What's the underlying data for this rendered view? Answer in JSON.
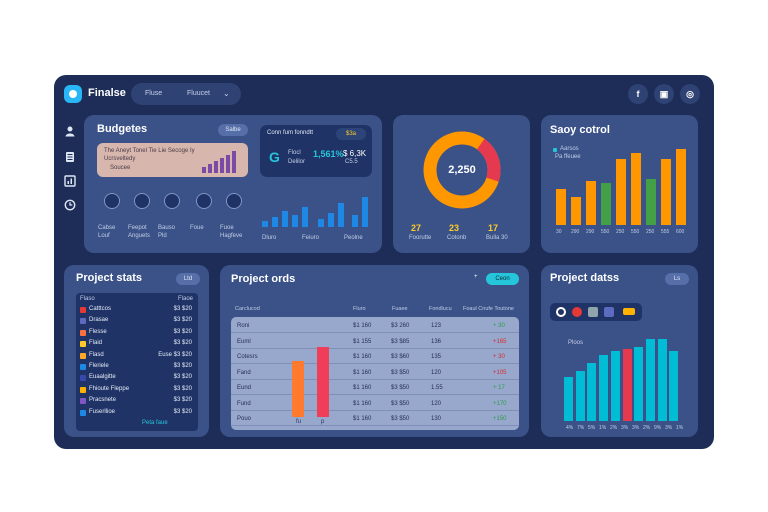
{
  "app": {
    "title": "Finalse"
  },
  "header": {
    "select_left": "Fluse",
    "select_right": "Fluucet",
    "chevron_glyph": "⌄",
    "social": [
      {
        "icon": "facebook-icon",
        "glyph": "f"
      },
      {
        "icon": "share-icon",
        "glyph": "▣"
      },
      {
        "icon": "globe-icon",
        "glyph": "◎"
      }
    ]
  },
  "sidebar": {
    "items": [
      {
        "icon": "user-icon"
      },
      {
        "icon": "document-icon"
      },
      {
        "icon": "chart-icon"
      },
      {
        "icon": "clock-icon"
      }
    ]
  },
  "budgets": {
    "title": "Budgetes",
    "pill": "Salbe",
    "banner": {
      "line1": "The Aneyt Tonel Tie Lie Secoge Iy",
      "line2": "Ucrsveltedy",
      "line3": "Soucee"
    },
    "people": [
      {
        "name": "Cabse",
        "sub": "Louf"
      },
      {
        "name": "Feepot",
        "sub": "Anguets"
      },
      {
        "name": "Bauso",
        "sub": "Pld"
      },
      {
        "name": "Foue",
        "sub": ""
      },
      {
        "name": "Fuoe",
        "sub": "Hagfeve"
      }
    ]
  },
  "cash": {
    "title": "Conn fum fonndtt",
    "tag": "$3a",
    "logo_glyph": "G",
    "label": "Flocl",
    "sub": "Delilor",
    "value": "1,561%",
    "value2": "$ 6,3K",
    "value2_sub": "C5.5",
    "x_labels": [
      "Dluro",
      "Feiuro",
      "Peolne"
    ]
  },
  "donut": {
    "center": "2,250",
    "legend": [
      {
        "value": "27",
        "label": "Foorutte"
      },
      {
        "value": "23",
        "label": "Cotonb"
      },
      {
        "value": "17",
        "label": "Bulla 30"
      }
    ]
  },
  "savings": {
    "title": "Saoy cotrol",
    "legend": [
      "Aarsos",
      "Pa ffeuee"
    ],
    "x_labels": [
      "30",
      "290",
      "290",
      "550",
      "250",
      "550",
      "250",
      "555",
      "600"
    ]
  },
  "project_left": {
    "title": "Project stats",
    "pill": "Ltd",
    "col1": "Flaso",
    "col2": "Flaoe",
    "rows": [
      {
        "name": "Catttcos",
        "value": "$3 $20"
      },
      {
        "name": "Drasae",
        "value": "$3 $20"
      },
      {
        "name": "Flesse",
        "value": "$3 $20"
      },
      {
        "name": "Flaid",
        "value": "$3 $20"
      },
      {
        "name": "Flasd",
        "value": "Euse $3 $20"
      },
      {
        "name": "Fleriele",
        "value": "$3 $20"
      },
      {
        "name": "Euaalgitte",
        "value": "$3 $20"
      },
      {
        "name": "Fhioute Fleppe",
        "value": "$3 $20"
      },
      {
        "name": "Pracsnete",
        "value": "$3 $20"
      },
      {
        "name": "Fuserllioe",
        "value": "$3 $20"
      }
    ],
    "footer": "Peta faue"
  },
  "project_mid": {
    "title": "Project ords",
    "button": "Ceon",
    "headers": [
      "Carclucod",
      "Fluro",
      "Fuaee",
      "Fondlucu",
      "Foaul Cnufe Toutone"
    ],
    "rows": [
      {
        "name": "Roni",
        "a": "$1 160",
        "b": "$3 260",
        "c": "123",
        "d": "+ 30",
        "color": "#2e9c4b"
      },
      {
        "name": "Euml",
        "a": "$1 155",
        "b": "$3 $85",
        "c": "136",
        "d": "+165",
        "color": "#d32f2f"
      },
      {
        "name": "Cotesrs",
        "a": "$1 160",
        "b": "$3 $60",
        "c": "135",
        "d": "+ 30",
        "color": "#d32f2f"
      },
      {
        "name": "Fand",
        "a": "$1 160",
        "b": "$3 $50",
        "c": "120",
        "d": "+105",
        "color": "#d32f2f"
      },
      {
        "name": "Eund",
        "a": "$1 160",
        "b": "$3 $50",
        "c": "1.55",
        "d": "+ 17",
        "color": "#2e9c4b"
      },
      {
        "name": "Fund",
        "a": "$1 160",
        "b": "$3 $50",
        "c": "120",
        "d": "+170",
        "color": "#2e9c4b"
      },
      {
        "name": "Pouo",
        "a": "$1 160",
        "b": "$3 $50",
        "c": "130",
        "d": "+150",
        "color": "#2e9c4b"
      }
    ],
    "bar_labels": [
      "fu",
      "p"
    ]
  },
  "project_right": {
    "title": "Project datss",
    "pill": "Ls",
    "chart_label": "Ploos",
    "x_labels": [
      "4%",
      "7%",
      "5%",
      "1%",
      "2%",
      "3%",
      "3%",
      "2%",
      "9%",
      "3%",
      "1%"
    ]
  },
  "colors": {
    "bg": "#1e2d57",
    "panel": "#3a5288",
    "accent_cyan": "#00bcd4",
    "orange": "#ff9800",
    "green": "#43a047",
    "red": "#e53950",
    "blue": "#1e88e5"
  }
}
